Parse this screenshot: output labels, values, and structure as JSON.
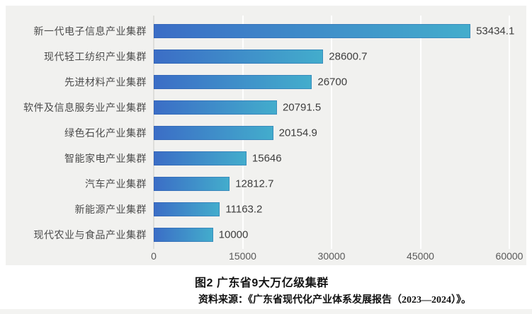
{
  "chart_data": {
    "type": "bar",
    "orientation": "horizontal",
    "title": "",
    "categories": [
      "新一代电子信息产业集群",
      "现代轻工纺织产业集群",
      "先进材料产业集群",
      "软件及信息服务业产业集群",
      "绿色石化产业集群",
      "智能家电产业集群",
      "汽车产业集群",
      "新能源产业集群",
      "现代农业与食品产业集群"
    ],
    "values": [
      53434.1,
      28600.7,
      26700,
      20791.5,
      20154.9,
      15646,
      12812.7,
      11163.2,
      10000
    ],
    "value_labels": [
      "53434.1",
      "28600.7",
      "26700",
      "20791.5",
      "20154.9",
      "15646",
      "12812.7",
      "11163.2",
      "10000"
    ],
    "xlim": [
      0,
      60000
    ],
    "x_ticks": [
      0,
      15000,
      30000,
      45000,
      60000
    ],
    "x_tick_labels": [
      "0",
      "15000",
      "30000",
      "45000",
      "60000"
    ],
    "grid": true,
    "legend": false,
    "bar_gradient_start": "#3b6dc6",
    "bar_gradient_end": "#43adcc"
  },
  "caption": {
    "title": "图2 广东省9大万亿级集群",
    "source": "资料来源：《广东省现代化产业体系发展报告（2023—2024）》。"
  },
  "colors": {
    "panel_background": "#f1f1ef",
    "page_background": "#ffffff",
    "gridline": "#ffffff",
    "value_label": "#3d3d3d",
    "category_label": "#4c4c4c",
    "tick_label": "#595959"
  }
}
